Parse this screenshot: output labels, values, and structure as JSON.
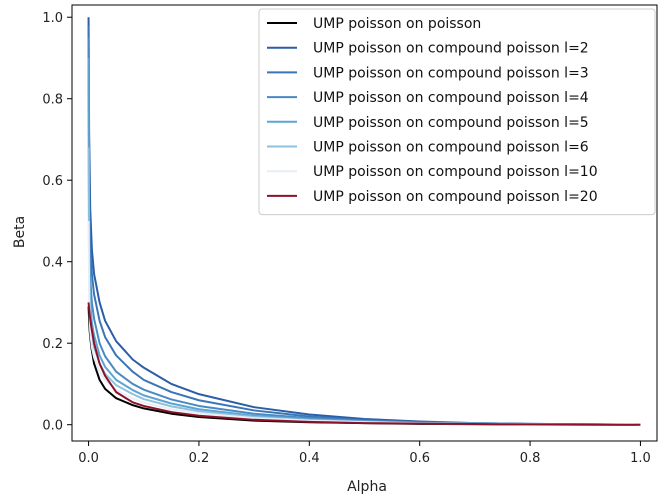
{
  "chart_data": {
    "type": "line",
    "title": "",
    "xlabel": "Alpha",
    "ylabel": "Beta",
    "xlim": [
      -0.03,
      1.03
    ],
    "ylim": [
      -0.04,
      1.03
    ],
    "xticks": [
      0.0,
      0.2,
      0.4,
      0.6,
      0.8,
      1.0
    ],
    "yticks": [
      0.0,
      0.2,
      0.4,
      0.6,
      0.8,
      1.0
    ],
    "xtick_labels": [
      "0.0",
      "0.2",
      "0.4",
      "0.6",
      "0.8",
      "1.0"
    ],
    "ytick_labels": [
      "0.0",
      "0.2",
      "0.4",
      "0.6",
      "0.8",
      "1.0"
    ],
    "grid": false,
    "legend_position": "top-right",
    "series": [
      {
        "name": "UMP poisson on poisson",
        "color": "#000000",
        "x": [
          0,
          0.002,
          0.005,
          0.01,
          0.02,
          0.03,
          0.05,
          0.08,
          0.1,
          0.15,
          0.2,
          0.3,
          0.4,
          0.5,
          0.6,
          0.8,
          1.0
        ],
        "y": [
          0.29,
          0.23,
          0.19,
          0.15,
          0.11,
          0.088,
          0.065,
          0.048,
          0.04,
          0.027,
          0.019,
          0.01,
          0.006,
          0.004,
          0.002,
          0.0005,
          0.0
        ]
      },
      {
        "name": "UMP poisson on compound poisson l=2",
        "color": "#2a5ea6",
        "x": [
          0,
          0.001,
          0.003,
          0.006,
          0.01,
          0.02,
          0.03,
          0.05,
          0.08,
          0.1,
          0.15,
          0.2,
          0.3,
          0.4,
          0.5,
          0.6,
          0.7,
          0.8,
          1.0
        ],
        "y": [
          1.0,
          0.72,
          0.53,
          0.43,
          0.37,
          0.3,
          0.255,
          0.205,
          0.16,
          0.14,
          0.1,
          0.075,
          0.043,
          0.025,
          0.014,
          0.008,
          0.004,
          0.002,
          0.0
        ]
      },
      {
        "name": "UMP poisson on compound poisson l=3",
        "color": "#3a75b6",
        "x": [
          0,
          0.001,
          0.003,
          0.006,
          0.01,
          0.02,
          0.03,
          0.05,
          0.08,
          0.1,
          0.15,
          0.2,
          0.3,
          0.4,
          0.5,
          0.6,
          0.8,
          1.0
        ],
        "y": [
          0.98,
          0.6,
          0.44,
          0.37,
          0.32,
          0.255,
          0.215,
          0.17,
          0.13,
          0.11,
          0.08,
          0.06,
          0.035,
          0.02,
          0.011,
          0.006,
          0.002,
          0.0
        ]
      },
      {
        "name": "UMP poisson on compound poisson l=4",
        "color": "#4a8ac4",
        "x": [
          0,
          0.001,
          0.003,
          0.006,
          0.01,
          0.02,
          0.03,
          0.05,
          0.08,
          0.1,
          0.15,
          0.2,
          0.3,
          0.4,
          0.5,
          0.6,
          0.8,
          1.0
        ],
        "y": [
          0.95,
          0.5,
          0.36,
          0.3,
          0.26,
          0.2,
          0.168,
          0.13,
          0.1,
          0.086,
          0.062,
          0.046,
          0.027,
          0.016,
          0.009,
          0.005,
          0.0015,
          0.0
        ]
      },
      {
        "name": "UMP poisson on compound poisson l=5",
        "color": "#5ea3d2",
        "x": [
          0,
          0.001,
          0.003,
          0.006,
          0.01,
          0.02,
          0.03,
          0.05,
          0.08,
          0.1,
          0.15,
          0.2,
          0.3,
          0.4,
          0.5,
          0.6,
          0.8,
          1.0
        ],
        "y": [
          0.9,
          0.42,
          0.3,
          0.25,
          0.22,
          0.17,
          0.142,
          0.11,
          0.085,
          0.072,
          0.052,
          0.038,
          0.022,
          0.013,
          0.008,
          0.004,
          0.0012,
          0.0
        ]
      },
      {
        "name": "UMP poisson on compound poisson l=6",
        "color": "#8cc2df",
        "x": [
          0,
          0.001,
          0.003,
          0.006,
          0.01,
          0.02,
          0.03,
          0.05,
          0.08,
          0.1,
          0.15,
          0.2,
          0.3,
          0.4,
          0.5,
          0.6,
          0.8,
          1.0
        ],
        "y": [
          0.68,
          0.36,
          0.26,
          0.22,
          0.19,
          0.15,
          0.125,
          0.097,
          0.075,
          0.063,
          0.045,
          0.033,
          0.019,
          0.011,
          0.007,
          0.004,
          0.001,
          0.0
        ]
      },
      {
        "name": "UMP poisson on compound poisson l=10",
        "color": "#e8eef5",
        "x": [
          0,
          0.001,
          0.003,
          0.006,
          0.01,
          0.02,
          0.03,
          0.05,
          0.08,
          0.1,
          0.15,
          0.2,
          0.3,
          0.4,
          0.5,
          0.6,
          0.8,
          1.0
        ],
        "y": [
          0.5,
          0.31,
          0.23,
          0.19,
          0.165,
          0.13,
          0.11,
          0.085,
          0.064,
          0.054,
          0.038,
          0.028,
          0.016,
          0.01,
          0.006,
          0.003,
          0.001,
          0.0
        ]
      },
      {
        "name": "UMP poisson on compound poisson l=20",
        "color": "#8b1228",
        "x": [
          0,
          0.002,
          0.005,
          0.01,
          0.02,
          0.03,
          0.05,
          0.08,
          0.1,
          0.15,
          0.2,
          0.3,
          0.4,
          0.5,
          0.6,
          0.8,
          1.0
        ],
        "y": [
          0.3,
          0.27,
          0.24,
          0.2,
          0.15,
          0.12,
          0.08,
          0.055,
          0.046,
          0.031,
          0.022,
          0.012,
          0.007,
          0.004,
          0.0025,
          0.0007,
          0.0
        ]
      }
    ]
  }
}
